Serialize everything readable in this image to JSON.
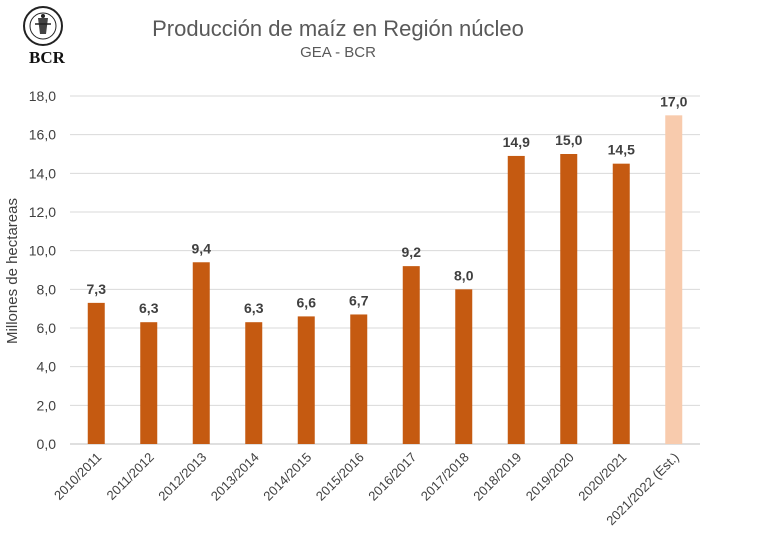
{
  "logo": {
    "text": "BCR",
    "ring_text": "BOLSA DE COMERCIO DE ROSARIO"
  },
  "chart_data": {
    "type": "bar",
    "title": "Producción de maíz en Región núcleo",
    "subtitle": "GEA - BCR",
    "xlabel": "",
    "ylabel": "Millones de hectareas",
    "ylim": [
      0,
      18
    ],
    "yticks": [
      "0,0",
      "2,0",
      "4,0",
      "6,0",
      "8,0",
      "10,0",
      "12,0",
      "14,0",
      "16,0",
      "18,0"
    ],
    "grid": true,
    "categories": [
      "2010/2011",
      "2011/2012",
      "2012/2013",
      "2013/2014",
      "2014/2015",
      "2015/2016",
      "2016/2017",
      "2017/2018",
      "2018/2019",
      "2019/2020",
      "2020/2021",
      "2021/2022 (Est.)"
    ],
    "values": [
      7.3,
      6.3,
      9.4,
      6.3,
      6.6,
      6.7,
      9.2,
      8.0,
      14.9,
      15.0,
      14.5,
      17.0
    ],
    "data_labels": [
      "7,3",
      "6,3",
      "9,4",
      "6,3",
      "6,6",
      "6,7",
      "9,2",
      "8,0",
      "14,9",
      "15,0",
      "14,5",
      "17,0"
    ],
    "colors": {
      "bar": "#c55a11",
      "estimate_bar": "#f8cbad",
      "grid": "#d9d9d9",
      "axis_text": "#404040"
    }
  }
}
